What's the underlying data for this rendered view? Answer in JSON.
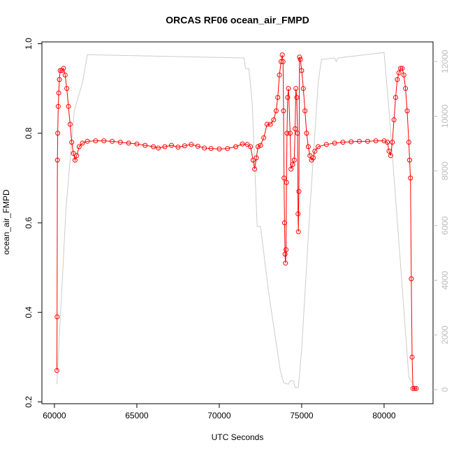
{
  "chart_data": {
    "type": "line",
    "title": "ORCAS RF06 ocean_air_FMPD",
    "x_label": "UTC Seconds",
    "y_label": "ocean_air_FMPD",
    "xlim": [
      59240,
      82970
    ],
    "xticks": [
      60000,
      65000,
      70000,
      75000,
      80000
    ],
    "ylim": [
      0.196,
      1.004
    ],
    "yticks": [
      0.2,
      0.4,
      0.6,
      {
        "value": 0.8,
        "label": "0.8"
      },
      {
        "value": 1.0,
        "label": "1.0"
      }
    ],
    "y2lim": [
      -513,
      12718
    ],
    "y2ticks": [
      0,
      2000,
      4000,
      6000,
      8000,
      10000,
      12000
    ],
    "y2_color": "#bbbbbb",
    "series": [
      {
        "color": "#cccccc",
        "markers": false,
        "axis": "y2",
        "x": [
          60150,
          60700,
          61200,
          61700,
          62000,
          71500,
          71600,
          71800,
          72000,
          72300,
          72500,
          73000,
          73700,
          73900,
          74200,
          74300,
          74500,
          74600,
          74800,
          75000,
          75500,
          76000,
          76200,
          77000,
          77100,
          77200,
          80000,
          80300,
          81000,
          81500,
          81900
        ],
        "values": [
          200,
          6600,
          10200,
          11230,
          12250,
          12130,
          11740,
          11740,
          10460,
          5970,
          5970,
          3540,
          718,
          256,
          200,
          330,
          330,
          80,
          80,
          1480,
          6600,
          11230,
          12077,
          12130,
          12000,
          12130,
          12333,
          10200,
          4560,
          460,
          50
        ]
      },
      {
        "color": "#ff0000",
        "markers": true,
        "x": [
          60150,
          60160,
          60180,
          60200,
          60230,
          60260,
          60300,
          60350,
          60450,
          60550,
          60650,
          60750,
          60850,
          60950,
          61050,
          61150,
          61250,
          61350,
          61500,
          61700,
          62000,
          62500,
          63000,
          63500,
          64000,
          64500,
          65000,
          65500,
          66000,
          66300,
          66700,
          67100,
          67500,
          67900,
          68300,
          68700,
          69100,
          69500,
          70000,
          70500,
          71000,
          71400,
          71700,
          71900,
          72050,
          72150,
          72250,
          72350,
          72500,
          72700,
          72900,
          73100,
          73300,
          73450,
          73550,
          73650,
          73750,
          73820,
          73870,
          73900,
          73930,
          73960,
          73990,
          74020,
          74050,
          74080,
          74110,
          74150,
          74200,
          74300,
          74350,
          74450,
          74550,
          74600,
          74650,
          74700,
          74750,
          74780,
          74800,
          74830,
          74870,
          74920,
          75000,
          75100,
          75200,
          75300,
          75400,
          75500,
          75600,
          75700,
          75800,
          76000,
          76500,
          77000,
          77500,
          78000,
          78500,
          79000,
          79500,
          80000,
          80200,
          80300,
          80400,
          80500,
          80600,
          80700,
          80800,
          80900,
          81000,
          81100,
          81200,
          81300,
          81400,
          81500,
          81550,
          81600,
          81650,
          81700,
          81750,
          81850,
          81950
        ],
        "values": [
          0.27,
          0.39,
          0.74,
          0.8,
          0.86,
          0.89,
          0.92,
          0.94,
          0.94,
          0.945,
          0.93,
          0.9,
          0.86,
          0.82,
          0.78,
          0.755,
          0.74,
          0.75,
          0.77,
          0.778,
          0.782,
          0.783,
          0.783,
          0.782,
          0.78,
          0.778,
          0.776,
          0.773,
          0.77,
          0.767,
          0.77,
          0.773,
          0.769,
          0.772,
          0.775,
          0.771,
          0.767,
          0.766,
          0.765,
          0.766,
          0.77,
          0.776,
          0.775,
          0.77,
          0.74,
          0.72,
          0.745,
          0.77,
          0.773,
          0.79,
          0.82,
          0.82,
          0.83,
          0.85,
          0.88,
          0.93,
          0.96,
          0.975,
          0.96,
          0.85,
          0.7,
          0.6,
          0.53,
          0.51,
          0.54,
          0.69,
          0.8,
          0.88,
          0.9,
          0.8,
          0.72,
          0.73,
          0.74,
          0.81,
          0.9,
          0.88,
          0.8,
          0.62,
          0.58,
          0.67,
          0.97,
          0.965,
          0.94,
          0.9,
          0.85,
          0.8,
          0.77,
          0.75,
          0.74,
          0.745,
          0.76,
          0.77,
          0.775,
          0.778,
          0.78,
          0.781,
          0.782,
          0.782,
          0.783,
          0.783,
          0.78,
          0.76,
          0.75,
          0.78,
          0.83,
          0.88,
          0.92,
          0.935,
          0.945,
          0.945,
          0.93,
          0.9,
          0.85,
          0.78,
          0.74,
          0.7,
          0.475,
          0.3,
          0.23,
          0.23,
          0.23
        ]
      }
    ]
  }
}
